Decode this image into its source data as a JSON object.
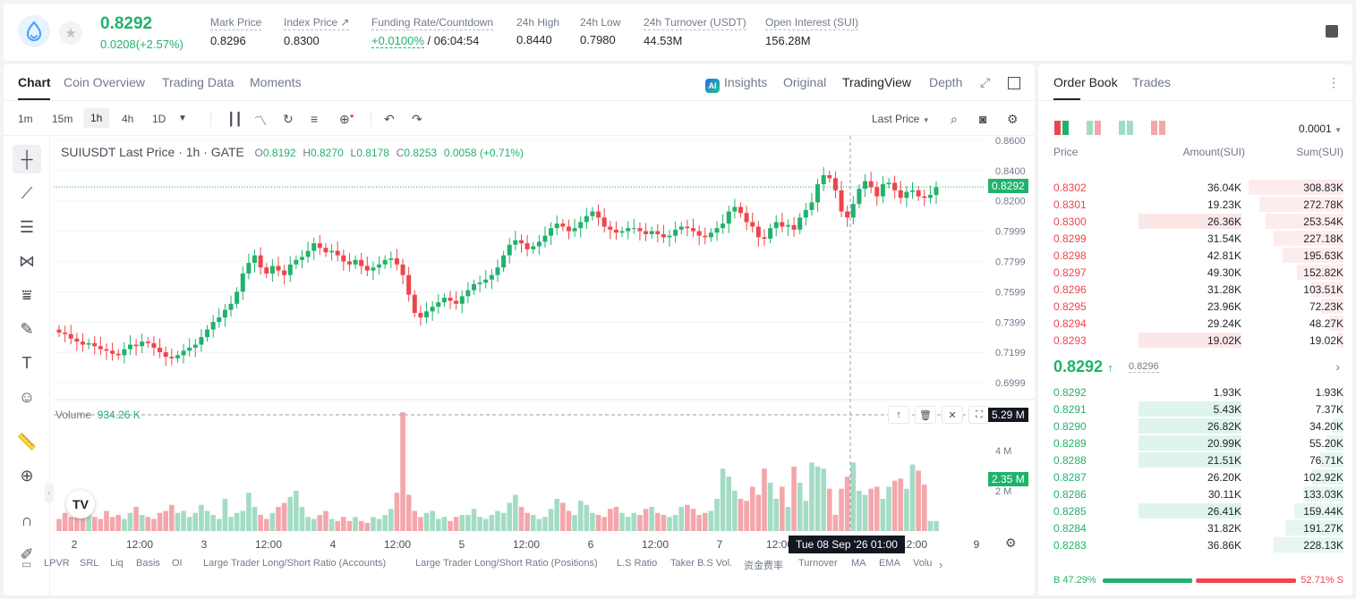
{
  "header": {
    "price": "0.8292",
    "change": "0.0208(+2.57%)",
    "stats": [
      {
        "label": "Mark Price",
        "value": "0.8296"
      },
      {
        "label": "Index Price ↗",
        "value": "0.8300"
      },
      {
        "label": "Funding Rate/Countdown",
        "value_green": "+0.0100%",
        "value": "/ 06:04:54"
      },
      {
        "label": "24h High",
        "value": "0.8440"
      },
      {
        "label": "24h Low",
        "value": "0.7980"
      },
      {
        "label": "24h Turnover (USDT)",
        "value": "44.53M"
      },
      {
        "label": "Open Interest (SUI)",
        "value": "156.28M"
      }
    ]
  },
  "chart_tabs": {
    "tab1": "Chart",
    "tab2": "Coin Overview",
    "tab3": "Trading Data",
    "tab4": "Moments",
    "ai_badge": "AI",
    "insights": "Insights",
    "original": "Original",
    "tradingview": "TradingView",
    "depth": "Depth"
  },
  "timeframes": {
    "t1": "1m",
    "t2": "15m",
    "t3": "1h",
    "t4": "4h",
    "t5": "1D"
  },
  "price_type_selector": "Last Price",
  "legend": {
    "symbol": "SUIUSDT Last Price · 1h · GATE",
    "o_k": "O",
    "o": "0.8192",
    "h_k": "H",
    "h": "0.8270",
    "l_k": "L",
    "l": "0.8178",
    "c_k": "C",
    "c": "0.8253",
    "chg": "0.0058 (+0.71%)"
  },
  "volume_legend": {
    "label": "Volume",
    "value": "934.26 K"
  },
  "crosshair_time": "Tue 08 Sep '26   01:00",
  "price_tags": {
    "last": "0.8292",
    "vol_cursor": "5.29 M",
    "vol_current": "2.35 M"
  },
  "indicators": [
    "LPVR",
    "SRL",
    "Liq",
    "Basis",
    "OI",
    "Large Trader Long/Short Ratio (Accounts)",
    "Large Trader Long/Short Ratio (Positions)",
    "L.S Ratio",
    "Taker B.S Vol.",
    "资金费率",
    "Turnover",
    "MA",
    "EMA",
    "Volu"
  ],
  "chart_data": {
    "type": "candlestick",
    "symbol": "SUIUSDT",
    "interval": "1h",
    "y_ticks": [
      0.86,
      0.84,
      0.82,
      0.7999,
      0.7799,
      0.7599,
      0.7399,
      0.7199,
      0.6999
    ],
    "y_tick_labels": [
      "0.8600",
      "0.8400",
      "0.8200",
      "0.7999",
      "0.7799",
      "0.7599",
      "0.7399",
      "0.7199",
      "0.6999"
    ],
    "x_tick_labels": [
      "2",
      "12:00",
      "3",
      "12:00",
      "4",
      "12:00",
      "5",
      "12:00",
      "6",
      "12:00",
      "7",
      "12:00",
      "8",
      "12:00",
      "9"
    ],
    "volume_ticks": [
      "4 M",
      "2 M"
    ],
    "close_series": [
      0.733,
      0.732,
      0.729,
      0.727,
      0.725,
      0.726,
      0.724,
      0.722,
      0.721,
      0.719,
      0.718,
      0.722,
      0.725,
      0.724,
      0.727,
      0.726,
      0.723,
      0.72,
      0.717,
      0.716,
      0.718,
      0.721,
      0.723,
      0.725,
      0.73,
      0.735,
      0.74,
      0.743,
      0.748,
      0.752,
      0.76,
      0.772,
      0.779,
      0.784,
      0.776,
      0.772,
      0.777,
      0.774,
      0.771,
      0.778,
      0.781,
      0.783,
      0.787,
      0.792,
      0.789,
      0.786,
      0.787,
      0.784,
      0.78,
      0.778,
      0.781,
      0.777,
      0.774,
      0.776,
      0.778,
      0.781,
      0.782,
      0.778,
      0.771,
      0.758,
      0.746,
      0.743,
      0.747,
      0.75,
      0.753,
      0.756,
      0.754,
      0.752,
      0.757,
      0.761,
      0.765,
      0.766,
      0.768,
      0.771,
      0.776,
      0.784,
      0.791,
      0.794,
      0.792,
      0.788,
      0.79,
      0.793,
      0.797,
      0.802,
      0.805,
      0.803,
      0.8,
      0.802,
      0.806,
      0.81,
      0.813,
      0.809,
      0.803,
      0.801,
      0.799,
      0.8,
      0.802,
      0.802,
      0.8,
      0.798,
      0.8,
      0.798,
      0.796,
      0.797,
      0.801,
      0.803,
      0.802,
      0.8,
      0.797,
      0.796,
      0.799,
      0.802,
      0.805,
      0.813,
      0.816,
      0.812,
      0.806,
      0.803,
      0.796,
      0.795,
      0.802,
      0.806,
      0.803,
      0.804,
      0.801,
      0.809,
      0.814,
      0.819,
      0.831,
      0.837,
      0.835,
      0.827,
      0.813,
      0.809,
      0.818,
      0.828,
      0.833,
      0.829,
      0.823,
      0.831,
      0.832,
      0.827,
      0.822,
      0.826,
      0.827,
      0.823,
      0.822,
      0.824,
      0.829
    ],
    "volume_series": [
      0.6,
      0.9,
      0.7,
      0.9,
      1.3,
      0.9,
      0.7,
      0.6,
      1.0,
      0.7,
      0.8,
      0.6,
      0.9,
      1.2,
      0.8,
      0.7,
      0.6,
      0.9,
      1.0,
      1.3,
      0.9,
      1.0,
      0.7,
      0.9,
      1.3,
      1.0,
      0.8,
      0.6,
      1.6,
      0.7,
      0.9,
      1.0,
      1.9,
      1.2,
      0.8,
      0.6,
      0.9,
      1.2,
      1.4,
      1.7,
      2.0,
      1.2,
      0.7,
      0.6,
      0.8,
      1.0,
      0.6,
      0.5,
      0.7,
      0.5,
      0.7,
      0.5,
      0.4,
      0.7,
      0.6,
      0.8,
      1.1,
      1.9,
      5.9,
      1.8,
      1.0,
      0.7,
      0.9,
      1.0,
      0.6,
      0.7,
      0.5,
      0.7,
      0.8,
      0.8,
      1.1,
      0.7,
      0.6,
      0.8,
      1.0,
      0.9,
      1.4,
      1.8,
      1.2,
      0.9,
      0.8,
      0.6,
      0.7,
      1.1,
      1.6,
      1.4,
      1.0,
      0.8,
      1.5,
      1.3,
      0.9,
      0.8,
      0.7,
      1.1,
      1.2,
      0.9,
      0.7,
      0.9,
      0.8,
      1.1,
      1.2,
      0.9,
      0.8,
      0.7,
      0.8,
      1.2,
      1.3,
      1.1,
      0.8,
      0.9,
      1.0,
      1.6,
      3.1,
      2.7,
      2.0,
      1.6,
      1.5,
      2.2,
      1.8,
      3.1,
      2.4,
      1.6,
      2.2,
      1.2,
      3.2,
      2.4,
      1.5,
      3.4,
      3.2,
      3.1,
      2.1,
      0.8,
      2.1,
      2.7,
      3.4,
      2.0,
      1.8,
      2.1,
      2.2,
      1.6,
      2.2,
      2.5,
      2.6,
      2.1,
      3.3,
      3.0,
      2.3
    ]
  },
  "orderbook": {
    "tab_ob": "Order Book",
    "tab_trades": "Trades",
    "precision": "0.0001",
    "headers": {
      "price": "Price",
      "amount": "Amount(SUI)",
      "sum": "Sum(SUI)"
    },
    "asks": [
      {
        "price": "0.8302",
        "amount": "36.04K",
        "sum": "308.83K",
        "amt_frac": 0.0,
        "sum_frac": 0.73
      },
      {
        "price": "0.8301",
        "amount": "19.23K",
        "sum": "272.78K",
        "amt_frac": 0.0,
        "sum_frac": 0.65
      },
      {
        "price": "0.8300",
        "amount": "26.36K",
        "sum": "253.54K",
        "amt_frac": 0.42,
        "sum_frac": 0.6
      },
      {
        "price": "0.8299",
        "amount": "31.54K",
        "sum": "227.18K",
        "amt_frac": 0.0,
        "sum_frac": 0.54
      },
      {
        "price": "0.8298",
        "amount": "42.81K",
        "sum": "195.63K",
        "amt_frac": 0.0,
        "sum_frac": 0.47
      },
      {
        "price": "0.8297",
        "amount": "49.30K",
        "sum": "152.82K",
        "amt_frac": 0.0,
        "sum_frac": 0.36
      },
      {
        "price": "0.8296",
        "amount": "31.28K",
        "sum": "103.51K",
        "amt_frac": 0.0,
        "sum_frac": 0.25
      },
      {
        "price": "0.8295",
        "amount": "23.96K",
        "sum": "72.23K",
        "amt_frac": 0.0,
        "sum_frac": 0.17
      },
      {
        "price": "0.8294",
        "amount": "29.24K",
        "sum": "48.27K",
        "amt_frac": 0.0,
        "sum_frac": 0.11
      },
      {
        "price": "0.8293",
        "amount": "19.02K",
        "sum": "19.02K",
        "amt_frac": 0.42,
        "sum_frac": 0.05
      }
    ],
    "mid_price": "0.8292",
    "mid_arrow": "↑",
    "mid_mark": "0.8296",
    "bids": [
      {
        "price": "0.8292",
        "amount": "1.93K",
        "sum": "1.93K",
        "amt_frac": 0.0,
        "sum_frac": 0.01
      },
      {
        "price": "0.8291",
        "amount": "5.43K",
        "sum": "7.37K",
        "amt_frac": 0.42,
        "sum_frac": 0.02
      },
      {
        "price": "0.8290",
        "amount": "26.82K",
        "sum": "34.20K",
        "amt_frac": 0.42,
        "sum_frac": 0.08
      },
      {
        "price": "0.8289",
        "amount": "20.99K",
        "sum": "55.20K",
        "amt_frac": 0.42,
        "sum_frac": 0.13
      },
      {
        "price": "0.8288",
        "amount": "21.51K",
        "sum": "76.71K",
        "amt_frac": 0.42,
        "sum_frac": 0.18
      },
      {
        "price": "0.8287",
        "amount": "26.20K",
        "sum": "102.92K",
        "amt_frac": 0.0,
        "sum_frac": 0.24
      },
      {
        "price": "0.8286",
        "amount": "30.11K",
        "sum": "133.03K",
        "amt_frac": 0.0,
        "sum_frac": 0.31
      },
      {
        "price": "0.8285",
        "amount": "26.41K",
        "sum": "159.44K",
        "amt_frac": 0.42,
        "sum_frac": 0.38
      },
      {
        "price": "0.8284",
        "amount": "31.82K",
        "sum": "191.27K",
        "amt_frac": 0.0,
        "sum_frac": 0.45
      },
      {
        "price": "0.8283",
        "amount": "36.86K",
        "sum": "228.13K",
        "amt_frac": 0.0,
        "sum_frac": 0.54
      }
    ],
    "buy_ratio": "B 47.29%",
    "sell_ratio": "52.71% S",
    "buy_frac": 0.4729
  },
  "colors": {
    "up": "#20b26c",
    "down": "#ef454a",
    "up_light": "#a3dcc4",
    "down_light": "#f3a7ab"
  }
}
